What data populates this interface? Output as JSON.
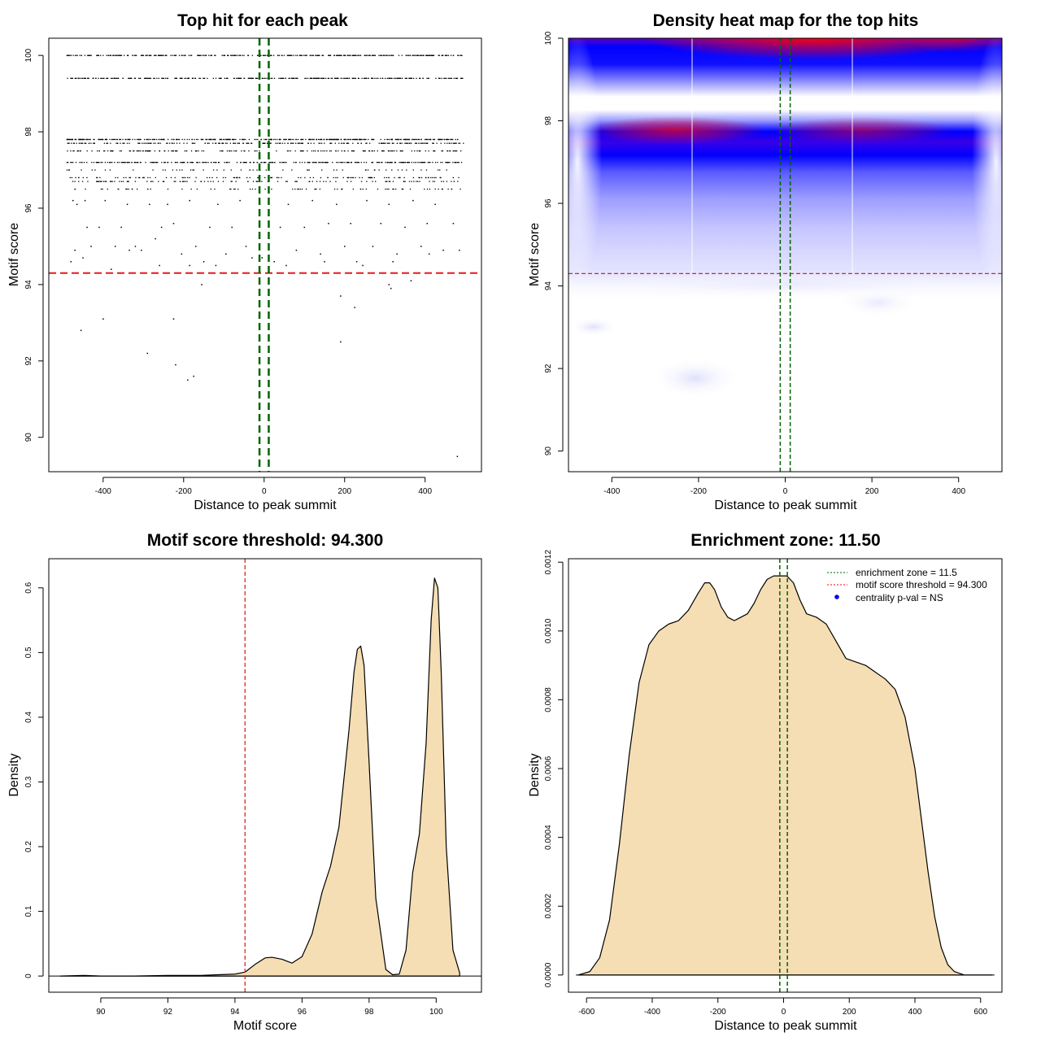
{
  "chart_data": [
    {
      "type": "scatter",
      "title": "Top hit for each peak",
      "xlabel": "Distance to peak summit",
      "ylabel": "Motif score",
      "xlim": [
        -535,
        540
      ],
      "ylim": [
        89.1,
        100.45
      ],
      "xticks": [
        -400,
        -200,
        0,
        200,
        400
      ],
      "yticks": [
        90,
        92,
        94,
        96,
        98,
        100
      ],
      "threshold": 94.3,
      "zone": [
        -11.5,
        11.5
      ],
      "bands": [
        {
          "y": 100.0,
          "density": 1.0
        },
        {
          "y": 99.4,
          "density": 0.85
        },
        {
          "y": 97.8,
          "density": 1.0
        },
        {
          "y": 97.7,
          "density": 0.6
        },
        {
          "y": 97.5,
          "density": 0.45
        },
        {
          "y": 97.2,
          "density": 0.75
        },
        {
          "y": 97.0,
          "density": 0.15
        },
        {
          "y": 96.8,
          "density": 0.3
        },
        {
          "y": 96.7,
          "density": 0.3
        },
        {
          "y": 96.5,
          "density": 0.2
        }
      ],
      "sparse_points": [
        [
          -475,
          96.2
        ],
        [
          -465,
          96.1
        ],
        [
          -445,
          96.2
        ],
        [
          -440,
          95.5
        ],
        [
          -430,
          95.0
        ],
        [
          -410,
          95.5
        ],
        [
          -395,
          96.2
        ],
        [
          -370,
          95.0
        ],
        [
          -355,
          95.5
        ],
        [
          -340,
          96.1
        ],
        [
          -320,
          95.0
        ],
        [
          -305,
          94.9
        ],
        [
          -285,
          96.1
        ],
        [
          -270,
          95.2
        ],
        [
          -255,
          95.5
        ],
        [
          -240,
          96.1
        ],
        [
          -225,
          95.6
        ],
        [
          -205,
          94.8
        ],
        [
          -185,
          96.2
        ],
        [
          -170,
          95.0
        ],
        [
          -150,
          94.6
        ],
        [
          -135,
          95.5
        ],
        [
          -115,
          96.1
        ],
        [
          -95,
          94.8
        ],
        [
          -80,
          95.5
        ],
        [
          -60,
          96.2
        ],
        [
          -45,
          95.0
        ],
        [
          -30,
          94.7
        ],
        [
          25,
          94.6
        ],
        [
          40,
          95.5
        ],
        [
          60,
          96.1
        ],
        [
          80,
          94.9
        ],
        [
          100,
          95.5
        ],
        [
          120,
          96.2
        ],
        [
          140,
          94.8
        ],
        [
          160,
          95.6
        ],
        [
          180,
          96.1
        ],
        [
          200,
          95.0
        ],
        [
          215,
          95.6
        ],
        [
          230,
          94.6
        ],
        [
          255,
          96.2
        ],
        [
          270,
          95.0
        ],
        [
          290,
          95.6
        ],
        [
          310,
          96.1
        ],
        [
          330,
          94.8
        ],
        [
          350,
          95.5
        ],
        [
          370,
          96.2
        ],
        [
          390,
          95.0
        ],
        [
          405,
          95.6
        ],
        [
          425,
          96.1
        ],
        [
          445,
          94.9
        ],
        [
          470,
          95.6
        ],
        [
          485,
          94.9
        ],
        [
          -480,
          94.6
        ],
        [
          -470,
          94.9
        ],
        [
          -450,
          94.7
        ],
        [
          -380,
          94.4
        ],
        [
          -335,
          94.9
        ],
        [
          -260,
          94.5
        ],
        [
          -185,
          94.5
        ],
        [
          -120,
          94.5
        ],
        [
          -5,
          94.7
        ],
        [
          55,
          94.5
        ],
        [
          150,
          94.6
        ],
        [
          245,
          94.5
        ],
        [
          320,
          94.6
        ],
        [
          410,
          94.8
        ],
        [
          -455,
          92.8
        ],
        [
          -400,
          93.1
        ],
        [
          -290,
          92.2
        ],
        [
          -225,
          93.1
        ],
        [
          -220,
          91.9
        ],
        [
          -190,
          91.5
        ],
        [
          -175,
          91.6
        ],
        [
          -155,
          94.0
        ],
        [
          190,
          93.7
        ],
        [
          190,
          92.5
        ],
        [
          225,
          93.4
        ],
        [
          310,
          94.0
        ],
        [
          315,
          93.9
        ],
        [
          365,
          94.1
        ],
        [
          480,
          89.5
        ]
      ]
    },
    {
      "type": "heatmap",
      "title": "Density heat map for the top hits",
      "xlabel": "Distance to peak summit",
      "ylabel": "Motif score",
      "xlim": [
        -500,
        500
      ],
      "ylim": [
        89.5,
        100
      ],
      "xticks": [
        -400,
        -200,
        0,
        200,
        400
      ],
      "yticks": [
        90,
        92,
        94,
        96,
        98,
        100
      ],
      "threshold": 94.3,
      "zone": [
        -11.5,
        11.5
      ],
      "colors": [
        "#ffffff",
        "#0000ff",
        "#ff0000"
      ]
    },
    {
      "type": "area",
      "title": "Motif score threshold: 94.300",
      "xlabel": "Motif score",
      "ylabel": "Density",
      "xlim": [
        88.45,
        101.35
      ],
      "ylim": [
        -0.025,
        0.645
      ],
      "xticks": [
        90,
        92,
        94,
        96,
        98,
        100
      ],
      "yticks": [
        0.0,
        0.1,
        0.2,
        0.3,
        0.4,
        0.5,
        0.6
      ],
      "threshold": 94.3,
      "x": [
        88.8,
        89.5,
        90.0,
        91.0,
        92.0,
        93.0,
        93.5,
        94.0,
        94.3,
        94.6,
        94.9,
        95.1,
        95.4,
        95.7,
        96.0,
        96.3,
        96.6,
        96.85,
        97.1,
        97.4,
        97.55,
        97.65,
        97.75,
        97.85,
        98.0,
        98.2,
        98.5,
        98.7,
        98.9,
        99.1,
        99.3,
        99.5,
        99.7,
        99.85,
        99.95,
        100.05,
        100.15,
        100.3,
        100.5,
        100.7
      ],
      "y": [
        0.0,
        0.001,
        0.0,
        0.0,
        0.001,
        0.001,
        0.002,
        0.003,
        0.006,
        0.018,
        0.028,
        0.029,
        0.026,
        0.02,
        0.03,
        0.065,
        0.13,
        0.17,
        0.23,
        0.38,
        0.47,
        0.505,
        0.51,
        0.48,
        0.33,
        0.12,
        0.01,
        0.002,
        0.003,
        0.04,
        0.16,
        0.22,
        0.36,
        0.55,
        0.615,
        0.6,
        0.47,
        0.2,
        0.04,
        0.005
      ]
    },
    {
      "type": "area",
      "title": "Enrichment zone: 11.50",
      "xlabel": "Distance to peak summit",
      "ylabel": "Density",
      "xlim": [
        -655,
        665
      ],
      "ylim": [
        -5e-05,
        0.00121
      ],
      "xticks": [
        -600,
        -400,
        -200,
        0,
        200,
        400,
        600
      ],
      "yticks": [
        0.0,
        0.0002,
        0.0004,
        0.0006,
        0.0008,
        0.001,
        0.0012
      ],
      "ytick_labels": [
        "0.0000",
        "0.0002",
        "0.0004",
        "0.0006",
        "0.0008",
        "0.0010",
        "0.0012"
      ],
      "zone": [
        -11.5,
        11.5
      ],
      "x": [
        -625,
        -590,
        -560,
        -530,
        -500,
        -470,
        -440,
        -410,
        -380,
        -350,
        -320,
        -290,
        -260,
        -240,
        -225,
        -210,
        -190,
        -170,
        -150,
        -130,
        -110,
        -90,
        -70,
        -50,
        -30,
        -10,
        10,
        30,
        50,
        70,
        100,
        130,
        160,
        190,
        220,
        250,
        280,
        310,
        340,
        370,
        400,
        420,
        440,
        460,
        480,
        500,
        520,
        550,
        580,
        610,
        635
      ],
      "y": [
        0.0,
        1e-05,
        5e-05,
        0.00016,
        0.00038,
        0.00064,
        0.00085,
        0.00096,
        0.001,
        0.00102,
        0.00103,
        0.00106,
        0.00111,
        0.00114,
        0.00114,
        0.00112,
        0.00107,
        0.00104,
        0.00103,
        0.00104,
        0.00105,
        0.00108,
        0.00112,
        0.00115,
        0.00116,
        0.00116,
        0.00116,
        0.00114,
        0.00109,
        0.00105,
        0.00104,
        0.00102,
        0.00097,
        0.00092,
        0.00091,
        0.0009,
        0.00088,
        0.00086,
        0.00083,
        0.00075,
        0.0006,
        0.00045,
        0.0003,
        0.00017,
        8e-05,
        3e-05,
        1e-05,
        0.0,
        0.0,
        0.0,
        0.0
      ],
      "legend": [
        {
          "label": "enrichment zone = 11.5",
          "color": "#006400",
          "kind": "dotted"
        },
        {
          "label": "motif score threshold = 94.300",
          "color": "#ff0000",
          "kind": "dotted"
        },
        {
          "label": "centrality p-val = NS",
          "color": "#0000ff",
          "kind": "point"
        }
      ],
      "legend_position": "top-right"
    }
  ]
}
